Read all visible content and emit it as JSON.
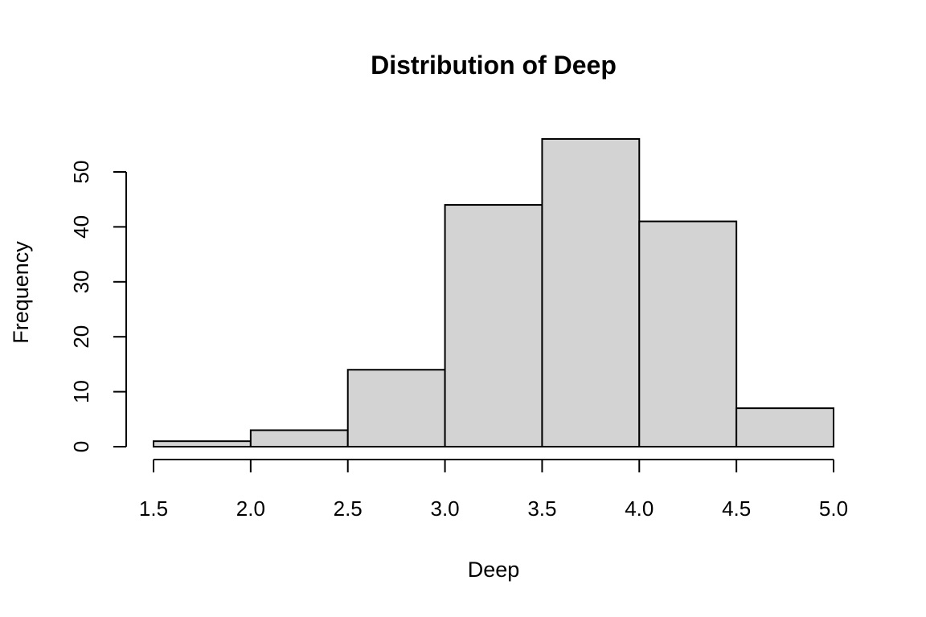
{
  "chart_data": {
    "type": "bar",
    "title": "Distribution of Deep",
    "xlabel": "Deep",
    "ylabel": "Frequency",
    "bins": [
      {
        "start": 1.5,
        "end": 2.0,
        "count": 1
      },
      {
        "start": 2.0,
        "end": 2.5,
        "count": 3
      },
      {
        "start": 2.5,
        "end": 3.0,
        "count": 14
      },
      {
        "start": 3.0,
        "end": 3.5,
        "count": 44
      },
      {
        "start": 3.5,
        "end": 4.0,
        "count": 56
      },
      {
        "start": 4.0,
        "end": 4.5,
        "count": 41
      },
      {
        "start": 4.5,
        "end": 5.0,
        "count": 7
      }
    ],
    "xlim": [
      1.5,
      5.0
    ],
    "ylim": [
      0,
      56
    ],
    "x_ticks": [
      "1.5",
      "2.0",
      "2.5",
      "3.0",
      "3.5",
      "4.0",
      "4.5",
      "5.0"
    ],
    "y_ticks": [
      "0",
      "10",
      "20",
      "30",
      "40",
      "50"
    ],
    "bar_color": "#d3d3d3",
    "grid": false
  }
}
